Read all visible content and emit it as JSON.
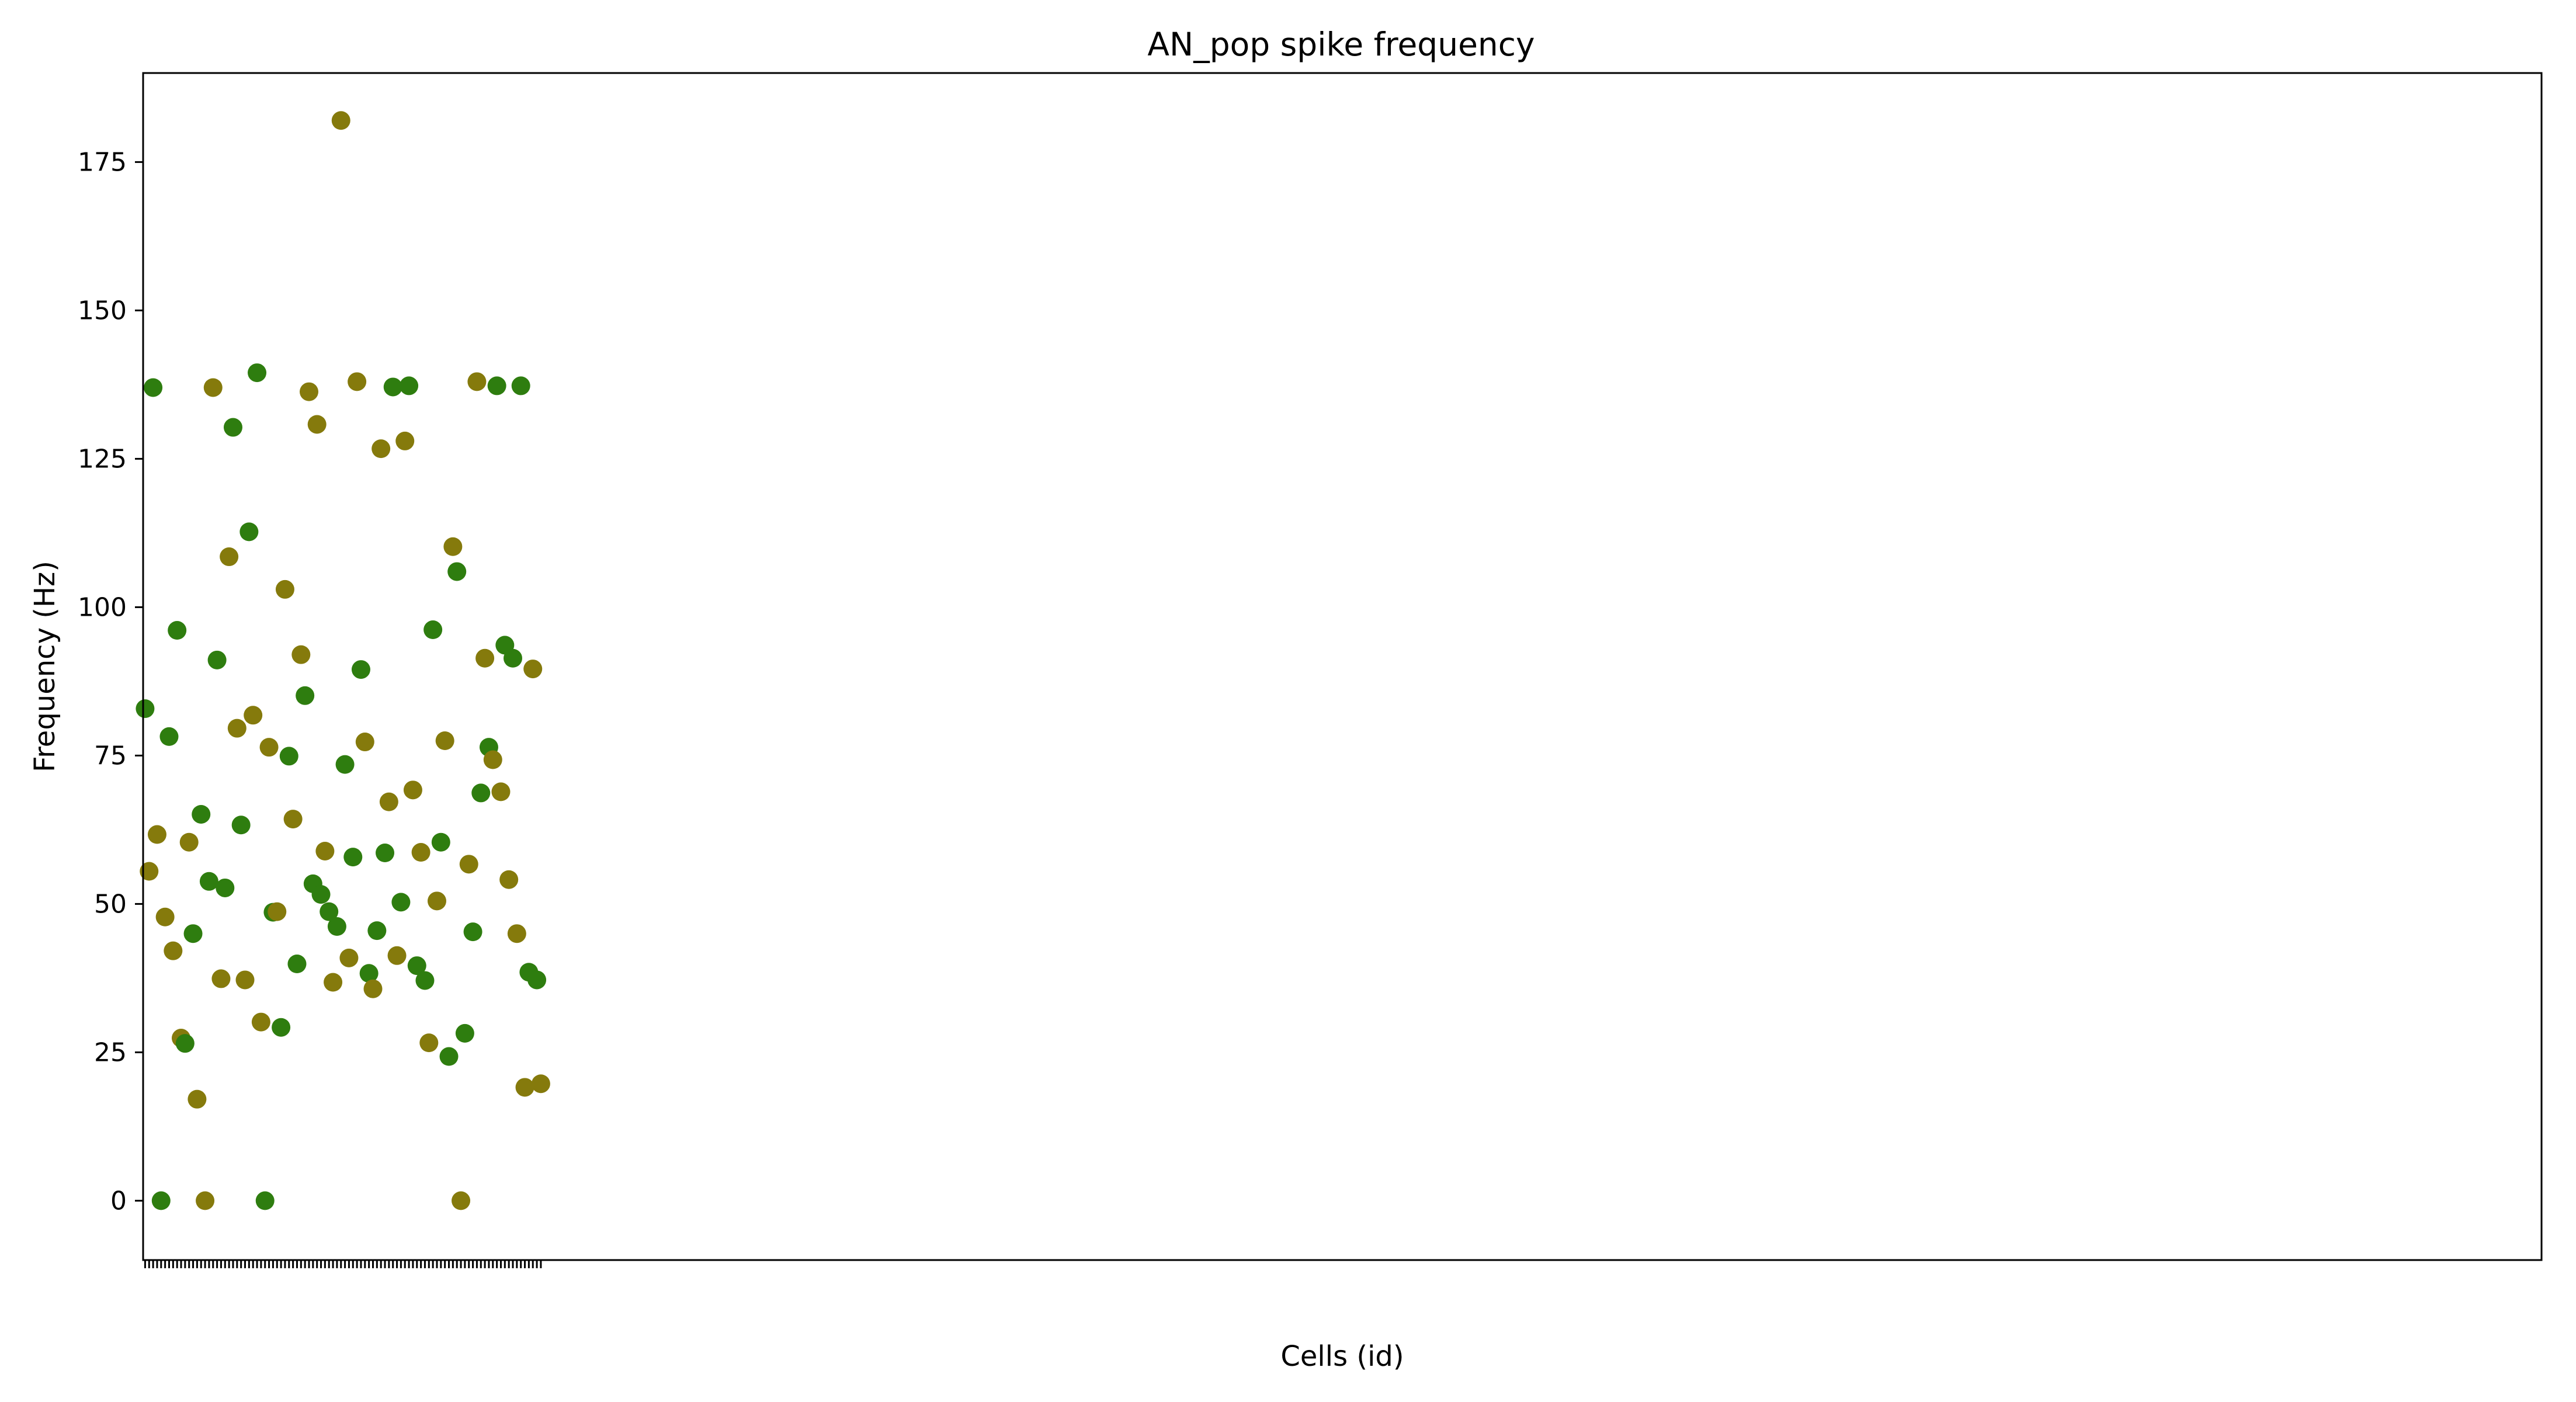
{
  "chart_data": {
    "type": "scatter",
    "title": "AN_pop spike frequency",
    "xlabel": "Cells (id)",
    "ylabel": "Frequency (Hz)",
    "xlim": [
      -0.5,
      599.5
    ],
    "ylim": [
      -10,
      190
    ],
    "yticks": [
      0,
      25,
      50,
      75,
      100,
      125,
      150,
      175
    ],
    "grid": false,
    "colors": [
      "#2e7d0f",
      "#857a0c"
    ],
    "points": [
      [
        0,
        82.9
      ],
      [
        1,
        55.5
      ],
      [
        2,
        137
      ],
      [
        3,
        61.7
      ],
      [
        4,
        0
      ],
      [
        5,
        47.8
      ],
      [
        6,
        78.2
      ],
      [
        7,
        42.1
      ],
      [
        8,
        96.1
      ],
      [
        9,
        27.4
      ],
      [
        10,
        26.5
      ],
      [
        11,
        60.4
      ],
      [
        12,
        45
      ],
      [
        13,
        17.1
      ],
      [
        14,
        65.1
      ],
      [
        15,
        0
      ],
      [
        16,
        53.8
      ],
      [
        17,
        137
      ],
      [
        18,
        91.1
      ],
      [
        19,
        37.4
      ],
      [
        20,
        52.7
      ],
      [
        21,
        108.5
      ],
      [
        22,
        130.3
      ],
      [
        23,
        79.6
      ],
      [
        24,
        63.3
      ],
      [
        25,
        37.2
      ],
      [
        26,
        112.7
      ],
      [
        27,
        81.8
      ],
      [
        28,
        139.5
      ],
      [
        29,
        30.1
      ],
      [
        30,
        0
      ],
      [
        31,
        76.4
      ],
      [
        32,
        48.6
      ],
      [
        33,
        48.7
      ],
      [
        34,
        29.2
      ],
      [
        35,
        103
      ],
      [
        36,
        74.9
      ],
      [
        37,
        64.3
      ],
      [
        38,
        39.9
      ],
      [
        39,
        92
      ],
      [
        40,
        85.1
      ],
      [
        41,
        136.3
      ],
      [
        42,
        53.4
      ],
      [
        43,
        130.8
      ],
      [
        44,
        51.6
      ],
      [
        45,
        58.9
      ],
      [
        46,
        48.7
      ],
      [
        47,
        36.8
      ],
      [
        48,
        46.2
      ],
      [
        49,
        182
      ],
      [
        50,
        73.5
      ],
      [
        51,
        40.9
      ],
      [
        52,
        57.9
      ],
      [
        53,
        138
      ],
      [
        54,
        89.5
      ],
      [
        55,
        77.3
      ],
      [
        56,
        38.3
      ],
      [
        57,
        35.7
      ],
      [
        58,
        45.5
      ],
      [
        59,
        126.7
      ],
      [
        60,
        58.6
      ],
      [
        61,
        67.2
      ],
      [
        62,
        137.1
      ],
      [
        63,
        41.3
      ],
      [
        64,
        50.3
      ],
      [
        65,
        128
      ],
      [
        66,
        137.3
      ],
      [
        67,
        69.2
      ],
      [
        68,
        39.6
      ],
      [
        69,
        58.7
      ],
      [
        70,
        37.1
      ],
      [
        71,
        26.6
      ],
      [
        72,
        96.2
      ],
      [
        73,
        50.5
      ],
      [
        74,
        60.4
      ],
      [
        75,
        77.5
      ],
      [
        76,
        24.3
      ],
      [
        77,
        110.2
      ],
      [
        78,
        106
      ],
      [
        79,
        0
      ],
      [
        80,
        28.2
      ],
      [
        81,
        56.7
      ],
      [
        82,
        45.3
      ],
      [
        83,
        138
      ],
      [
        84,
        68.7
      ],
      [
        85,
        91.4
      ],
      [
        86,
        76.4
      ],
      [
        87,
        74.3
      ],
      [
        88,
        137.3
      ],
      [
        89,
        68.9
      ],
      [
        90,
        93.6
      ],
      [
        91,
        54.1
      ],
      [
        92,
        91.4
      ],
      [
        93,
        45
      ],
      [
        94,
        137.3
      ],
      [
        95,
        19.1
      ],
      [
        96,
        38.5
      ],
      [
        97,
        89.6
      ],
      [
        98,
        37.2
      ],
      [
        99,
        19.7
      ]
    ]
  }
}
